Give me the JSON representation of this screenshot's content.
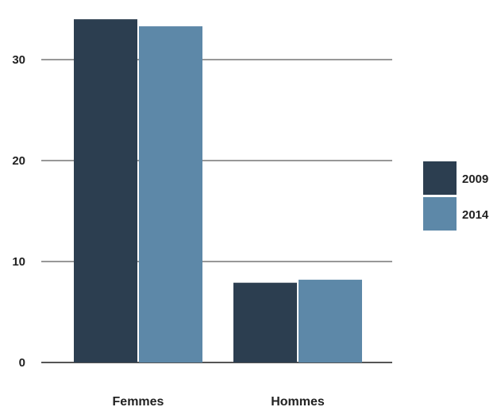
{
  "chart_data": {
    "type": "bar",
    "title": "",
    "xlabel": "",
    "ylabel": "",
    "categories": [
      "Femmes",
      "Hommes"
    ],
    "series": [
      {
        "name": "2009",
        "values": [
          34.0,
          7.9
        ],
        "color": "#2c3e50"
      },
      {
        "name": "2014",
        "values": [
          33.3,
          8.2
        ],
        "color": "#5d88a8"
      }
    ],
    "ylim": [
      0,
      35
    ],
    "yticks": [
      "0",
      "10",
      "20",
      "30"
    ],
    "ytick_values": [
      0,
      10,
      20,
      30
    ],
    "grid": true,
    "legend_position": "right"
  }
}
